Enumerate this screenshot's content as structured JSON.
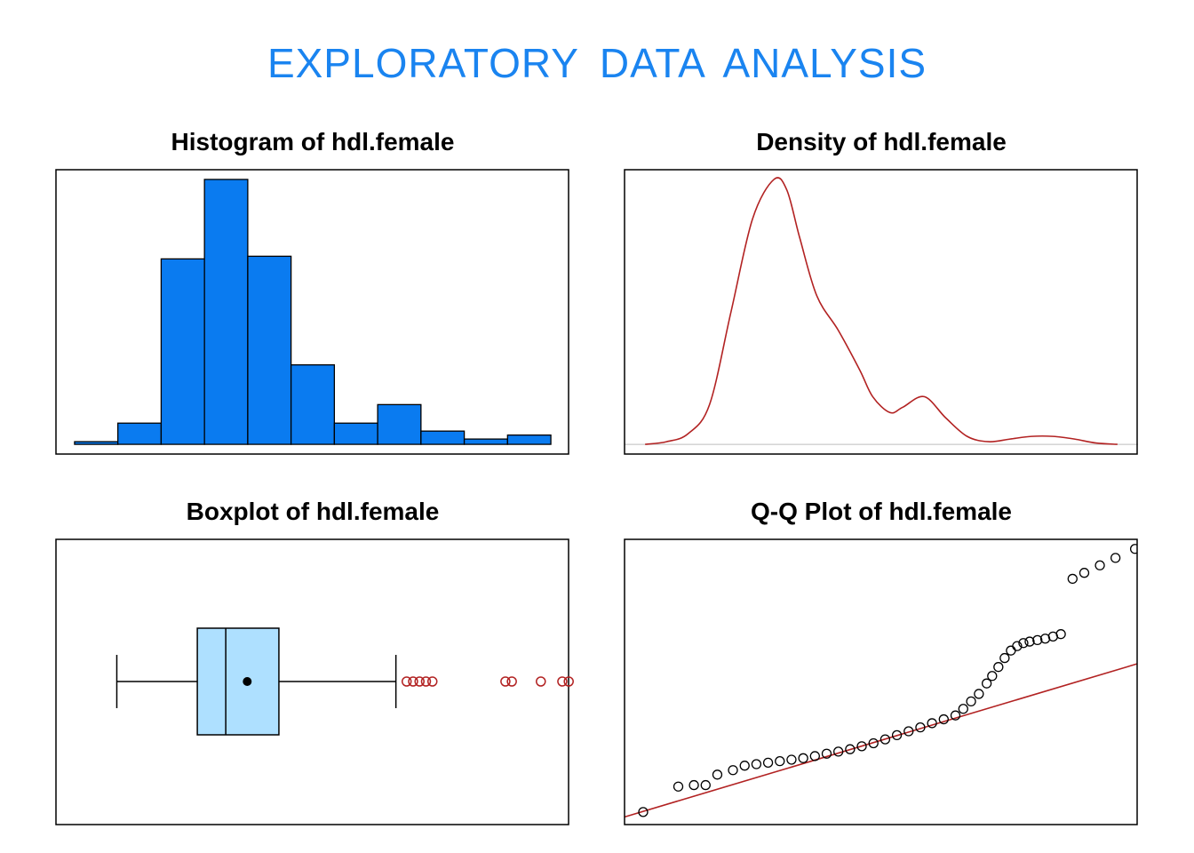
{
  "page": {
    "title": "EXPLORATORY  DATA  ANALYSIS",
    "title_color": "#1a84f0"
  },
  "chart_data": [
    {
      "type": "bar",
      "title": "Histogram of hdl.female",
      "bins": [
        {
          "from": 0,
          "to": 1,
          "count": 1
        },
        {
          "from": 1,
          "to": 2,
          "count": 8
        },
        {
          "from": 2,
          "to": 3,
          "count": 70
        },
        {
          "from": 3,
          "to": 4,
          "count": 100
        },
        {
          "from": 4,
          "to": 5,
          "count": 71
        },
        {
          "from": 5,
          "to": 6,
          "count": 30
        },
        {
          "from": 6,
          "to": 7,
          "count": 8
        },
        {
          "from": 7,
          "to": 8,
          "count": 15
        },
        {
          "from": 8,
          "to": 9,
          "count": 5
        },
        {
          "from": 9,
          "to": 10,
          "count": 2
        },
        {
          "from": 10,
          "to": 11,
          "count": 3.5
        }
      ],
      "xlim": [
        -0.45,
        11.45
      ],
      "ylim": [
        -4,
        104
      ],
      "fill_color": "#0a7bf0",
      "axes_shown": false
    },
    {
      "type": "line",
      "title": "Density of hdl.female",
      "x": [
        0,
        0.5,
        1,
        1.5,
        2,
        2.5,
        3,
        3.3,
        3.6,
        4,
        4.5,
        5,
        5.3,
        5.7,
        6,
        6.5,
        7,
        7.5,
        8,
        8.5,
        9,
        9.5,
        10,
        10.5,
        11
      ],
      "y": [
        0,
        0.01,
        0.04,
        0.15,
        0.5,
        0.85,
        1.0,
        0.96,
        0.78,
        0.56,
        0.43,
        0.28,
        0.18,
        0.12,
        0.14,
        0.18,
        0.1,
        0.03,
        0.01,
        0.02,
        0.03,
        0.03,
        0.02,
        0.005,
        0
      ],
      "baseline": 0,
      "xlim": [
        -0.5,
        11.5
      ],
      "ylim": [
        -0.04,
        1.04
      ],
      "line_color": "#b22222",
      "baseline_color": "#bebebe",
      "axes_shown": false
    },
    {
      "type": "boxplot",
      "title": "Boxplot of hdl.female",
      "whisker_low": 0.4,
      "q1": 1.9,
      "median": 2.43,
      "mean": 2.83,
      "q3": 3.42,
      "whisker_high": 5.6,
      "outliers": [
        5.8,
        5.92,
        6.04,
        6.16,
        6.28,
        7.64,
        7.76,
        8.3,
        8.7,
        8.82
      ],
      "xlim": [
        -0.75,
        8.85
      ],
      "box_color": "#aee0ff",
      "outlier_color": "#b22222",
      "axes_shown": false
    },
    {
      "type": "scatter",
      "title": "Q-Q Plot of hdl.female",
      "x": [
        -3.05,
        -2.6,
        -2.4,
        -2.25,
        -2.1,
        -1.9,
        -1.75,
        -1.6,
        -1.45,
        -1.3,
        -1.15,
        -1.0,
        -0.85,
        -0.7,
        -0.55,
        -0.4,
        -0.25,
        -0.1,
        0.05,
        0.2,
        0.35,
        0.5,
        0.65,
        0.8,
        0.95,
        1.05,
        1.15,
        1.25,
        1.35,
        1.42,
        1.5,
        1.58,
        1.66,
        1.74,
        1.82,
        1.9,
        2.0,
        2.1,
        2.2,
        2.3,
        2.45,
        2.6,
        2.8,
        3.0,
        3.25
      ],
      "y": [
        0.05,
        0.9,
        0.95,
        0.95,
        1.3,
        1.45,
        1.6,
        1.65,
        1.7,
        1.75,
        1.8,
        1.85,
        1.92,
        2.0,
        2.07,
        2.15,
        2.25,
        2.35,
        2.48,
        2.62,
        2.75,
        2.88,
        3.02,
        3.15,
        3.28,
        3.5,
        3.75,
        4.0,
        4.35,
        4.6,
        4.9,
        5.2,
        5.45,
        5.6,
        5.7,
        5.75,
        5.8,
        5.85,
        5.92,
        6.0,
        7.85,
        8.05,
        8.3,
        8.55,
        8.85
      ],
      "reference_line": {
        "slope": 0.78,
        "intercept": 2.45,
        "color": "#b22222"
      },
      "xlim": [
        -3.3,
        3.3
      ],
      "ylim": [
        -0.4,
        9.2
      ],
      "point_color": "#000000",
      "axes_shown": false
    }
  ]
}
